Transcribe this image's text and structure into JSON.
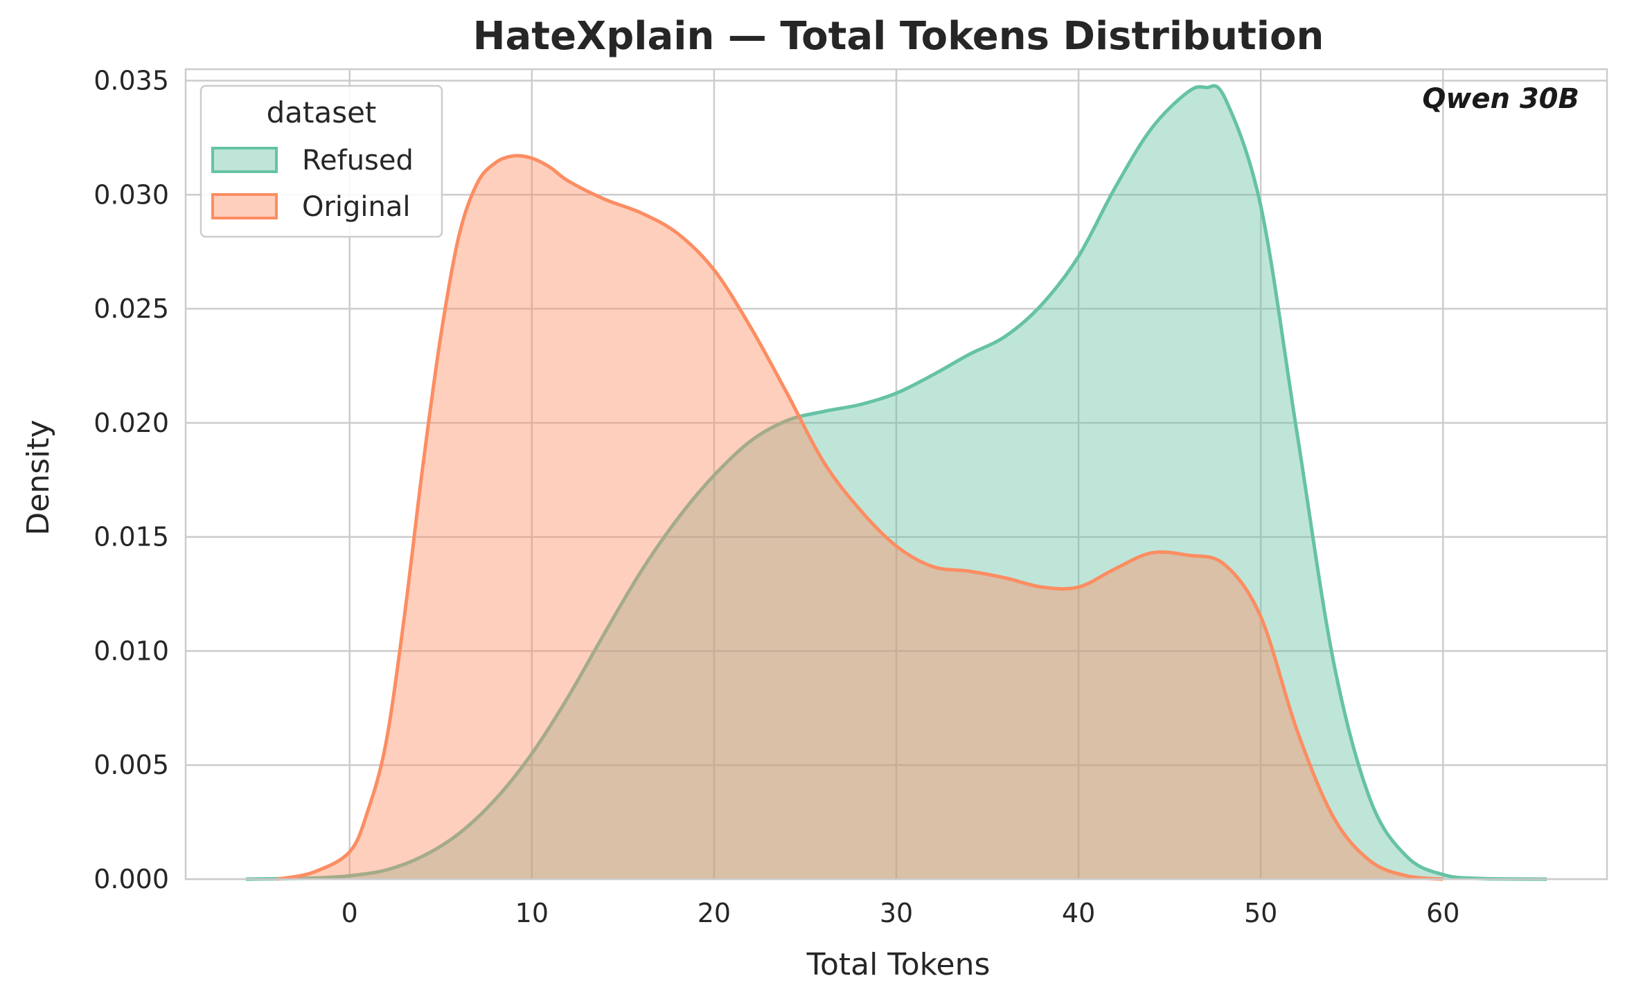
{
  "chart_data": {
    "type": "area",
    "title": "HateXplain — Total Tokens Distribution",
    "xlabel": "Total Tokens",
    "ylabel": "Density",
    "xlim": [
      -9,
      69
    ],
    "ylim": [
      0,
      0.0355
    ],
    "x_ticks": [
      0,
      10,
      20,
      30,
      40,
      50,
      60
    ],
    "x_tick_labels": [
      "0",
      "10",
      "20",
      "30",
      "40",
      "50",
      "60"
    ],
    "y_ticks": [
      0,
      0.005,
      0.01,
      0.015,
      0.02,
      0.025,
      0.03,
      0.035
    ],
    "y_tick_labels": [
      "0.000",
      "0.005",
      "0.010",
      "0.015",
      "0.020",
      "0.025",
      "0.030",
      "0.035"
    ],
    "grid": true,
    "legend": {
      "title": "dataset",
      "placement": "top-left"
    },
    "annotation": "Qwen 30B",
    "series": [
      {
        "name": "Refused",
        "color": "#66c2a5",
        "x": [
          -5.7,
          -2,
          0,
          2,
          4,
          6,
          8,
          10,
          12,
          14,
          16,
          18,
          20,
          22,
          24,
          26,
          28,
          30,
          32,
          34,
          36,
          38,
          40,
          42,
          44,
          46,
          47,
          48,
          50,
          52,
          54,
          56,
          58,
          60,
          62,
          65.7
        ],
        "y": [
          0,
          5e-05,
          0.00015,
          0.0004,
          0.001,
          0.002,
          0.0035,
          0.0055,
          0.008,
          0.0108,
          0.0135,
          0.0158,
          0.0177,
          0.0192,
          0.0201,
          0.0205,
          0.0208,
          0.0213,
          0.0221,
          0.023,
          0.0238,
          0.0252,
          0.0273,
          0.0303,
          0.0329,
          0.0345,
          0.0347,
          0.0343,
          0.0295,
          0.0195,
          0.0095,
          0.0035,
          0.001,
          0.0002,
          3e-05,
          0
        ]
      },
      {
        "name": "Original",
        "color": "#fc8d62",
        "x": [
          -4,
          -2,
          0,
          1,
          2,
          3,
          4,
          5,
          6,
          7,
          8,
          9,
          10,
          11,
          12,
          14,
          16,
          18,
          20,
          22,
          24,
          26,
          28,
          30,
          32,
          34,
          36,
          38,
          40,
          42,
          44,
          46,
          48,
          50,
          52,
          54,
          56,
          58,
          60
        ],
        "y": [
          0,
          0.0003,
          0.0012,
          0.003,
          0.006,
          0.0115,
          0.018,
          0.0238,
          0.0282,
          0.0305,
          0.0314,
          0.0317,
          0.0316,
          0.0312,
          0.0306,
          0.0298,
          0.0292,
          0.0283,
          0.0267,
          0.0242,
          0.0213,
          0.0183,
          0.0162,
          0.0146,
          0.0137,
          0.0135,
          0.0132,
          0.0128,
          0.0128,
          0.0136,
          0.0143,
          0.0142,
          0.0138,
          0.0115,
          0.0065,
          0.0027,
          0.0008,
          0.00015,
          0
        ]
      }
    ]
  }
}
